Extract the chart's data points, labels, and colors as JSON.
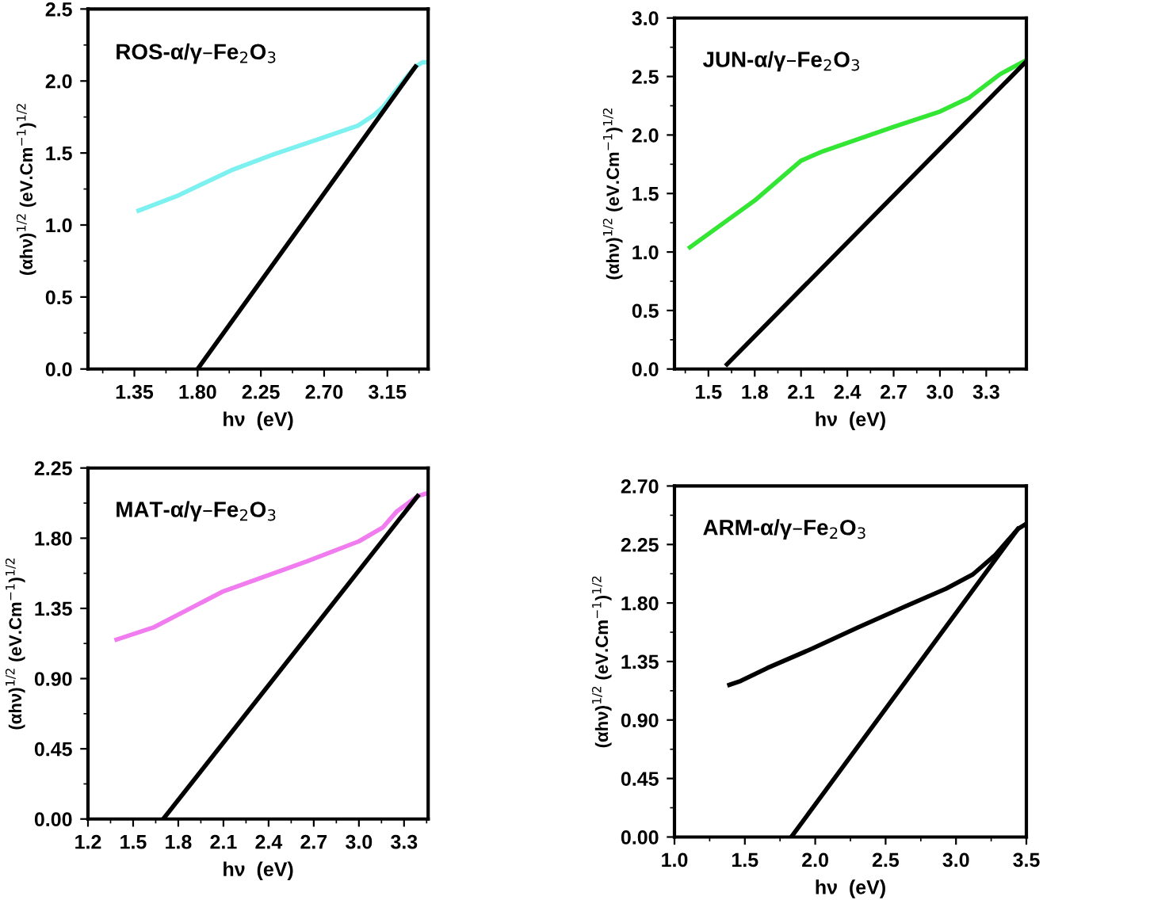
{
  "chart_data": [
    {
      "type": "line",
      "title": "ROS-α/γ–Fe$_{2}$O$_{3}$",
      "xlabel": "hν  (eV)",
      "ylabel": "(αhν)$^{1/2}$ (eV.Cm$^{−1}$)$^{1/2}$",
      "xlim": [
        1.02,
        3.44
      ],
      "xticks": [
        {
          "value": 1.35,
          "label": "1.35"
        },
        {
          "value": 1.8,
          "label": "1.80"
        },
        {
          "value": 2.25,
          "label": "2.25"
        },
        {
          "value": 2.7,
          "label": "2.70"
        },
        {
          "value": 3.15,
          "label": "3.15"
        }
      ],
      "ylim": [
        0,
        2.5
      ],
      "yticks": [
        {
          "value": 0,
          "label": "0.0"
        },
        {
          "value": 0.5,
          "label": "0.5"
        },
        {
          "value": 1,
          "label": "1.0"
        },
        {
          "value": 1.5,
          "label": "1.5"
        },
        {
          "value": 2,
          "label": "2.0"
        },
        {
          "value": 2.5,
          "label": "2.5"
        }
      ],
      "grid": false,
      "legend": false,
      "series": [
        {
          "color": "#7df0f0",
          "x": [
            1.38,
            1.65,
            2.04,
            2.34,
            2.64,
            2.94,
            3.05,
            3.12,
            3.2,
            3.28,
            3.35,
            3.4,
            3.44
          ],
          "values": [
            1.1,
            1.2,
            1.38,
            1.49,
            1.59,
            1.69,
            1.76,
            1.82,
            1.92,
            2.02,
            2.1,
            2.13,
            2.13
          ]
        },
        {
          "color": "#000000",
          "x": [
            1.8,
            3.35
          ],
          "values": [
            0,
            2.1
          ]
        }
      ]
    },
    {
      "type": "line",
      "title": "JUN-α/γ–Fe$_{2}$O$_{3}$",
      "xlabel": "hν  (eV)",
      "ylabel": "(αhν)$^{1/2}$ (eV.Cm$^{−1}$)$^{1/2}$",
      "xlim": [
        1.28,
        3.56
      ],
      "xticks": [
        1.5,
        1.8,
        2.1,
        2.4,
        2.7,
        {
          "value": 3,
          "label": "3.0"
        },
        3.3
      ],
      "ylim": [
        0,
        3
      ],
      "yticks": [
        {
          "value": 0,
          "label": "0.0"
        },
        {
          "value": 0.5,
          "label": "0.5"
        },
        {
          "value": 1,
          "label": "1.0"
        },
        {
          "value": 1.5,
          "label": "1.5"
        },
        {
          "value": 2,
          "label": "2.0"
        },
        {
          "value": 2.5,
          "label": "2.5"
        },
        {
          "value": 3,
          "label": "3.0"
        }
      ],
      "grid": false,
      "legend": false,
      "series": [
        {
          "color": "#33e633",
          "x": [
            1.38,
            1.8,
            2.1,
            2.24,
            2.7,
            3.0,
            3.19,
            3.39,
            3.56
          ],
          "values": [
            1.04,
            1.44,
            1.78,
            1.86,
            2.07,
            2.2,
            2.32,
            2.52,
            2.64
          ]
        },
        {
          "color": "#000000",
          "x": [
            1.62,
            3.56
          ],
          "values": [
            0.04,
            2.63
          ]
        }
      ]
    },
    {
      "type": "line",
      "title": "MAT-α/γ–Fe$_{2}$O$_{3}$",
      "xlabel": "hν  (eV)",
      "ylabel": "(αhν)$^{1/2}$ (eV.Cm$^{−1}$)$^{1/2}$",
      "xlim": [
        1.2,
        3.46
      ],
      "xticks": [
        1.2,
        1.5,
        1.8,
        2.1,
        2.4,
        2.7,
        {
          "value": 3,
          "label": "3.0"
        },
        3.3
      ],
      "ylim": [
        0,
        2.25
      ],
      "yticks": [
        {
          "value": 0,
          "label": "0.00"
        },
        {
          "value": 0.45,
          "label": "0.45"
        },
        {
          "value": 0.9,
          "label": "0.90"
        },
        {
          "value": 1.35,
          "label": "1.35"
        },
        {
          "value": 1.8,
          "label": "1.80"
        },
        {
          "value": 2.25,
          "label": "2.25"
        }
      ],
      "grid": false,
      "legend": false,
      "series": [
        {
          "color": "#f07cf0",
          "x": [
            1.39,
            1.64,
            2.1,
            2.65,
            3.0,
            3.16,
            3.25,
            3.39,
            3.46
          ],
          "values": [
            1.15,
            1.23,
            1.46,
            1.65,
            1.78,
            1.87,
            1.97,
            2.07,
            2.09
          ]
        },
        {
          "color": "#000000",
          "x": [
            1.7,
            3.39
          ],
          "values": [
            0,
            2.07
          ]
        }
      ]
    },
    {
      "type": "line",
      "title": "ARM-α/γ–Fe$_{2}$O$_{3}$",
      "xlabel": "hν  (eV)",
      "ylabel": "(αhν)$^{1/2}$ (eV.Cm$^{−1}$)$^{1/2}$",
      "xlim": [
        1.0,
        3.5
      ],
      "xticks": [
        {
          "value": 1,
          "label": "1.0"
        },
        1.5,
        {
          "value": 2,
          "label": "2.0"
        },
        2.5,
        {
          "value": 3,
          "label": "3.0"
        },
        3.5
      ],
      "ylim": [
        0,
        2.7
      ],
      "yticks": [
        {
          "value": 0,
          "label": "0.00"
        },
        {
          "value": 0.45,
          "label": "0.45"
        },
        {
          "value": 0.9,
          "label": "0.90"
        },
        {
          "value": 1.35,
          "label": "1.35"
        },
        {
          "value": 1.8,
          "label": "1.80"
        },
        {
          "value": 2.25,
          "label": "2.25"
        },
        {
          "value": 2.7,
          "label": "2.70"
        }
      ],
      "grid": false,
      "legend": false,
      "series": [
        {
          "color": "#000000",
          "x": [
            1.39,
            1.47,
            1.66,
            1.98,
            2.3,
            2.61,
            2.93,
            3.12,
            3.28,
            3.44,
            3.5
          ],
          "values": [
            1.17,
            1.2,
            1.3,
            1.45,
            1.61,
            1.76,
            1.91,
            2.02,
            2.17,
            2.37,
            2.41
          ]
        },
        {
          "color": "#000000",
          "x": [
            1.83,
            3.44
          ],
          "values": [
            0,
            2.37
          ]
        }
      ]
    }
  ]
}
